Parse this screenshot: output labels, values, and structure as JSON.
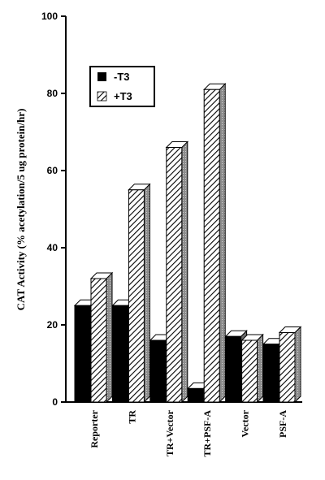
{
  "chart_data": {
    "type": "bar",
    "ylabel": "CAT Activity (% acetylation/5 ug protein/hr)",
    "xlabel": "",
    "ylim": [
      0,
      100
    ],
    "yticks": [
      0,
      20,
      40,
      60,
      80,
      100
    ],
    "categories": [
      "Reporter",
      "TR",
      "TR+Vector",
      "TR+PSF-A",
      "Vector",
      "PSF-A"
    ],
    "series": [
      {
        "name": "-T3",
        "values": [
          25,
          25,
          16,
          3.5,
          17,
          15
        ],
        "fill": "solid-black"
      },
      {
        "name": "+T3",
        "values": [
          32,
          55,
          66,
          81,
          16,
          18
        ],
        "fill": "diagonal-hatch"
      }
    ],
    "legend_position": "upper-left",
    "style": "3d-bars",
    "grid": false,
    "colors": {
      "solid": "#000000",
      "hatch": "#000000",
      "face": "#ffffff",
      "side": "#9a9a9a"
    }
  }
}
